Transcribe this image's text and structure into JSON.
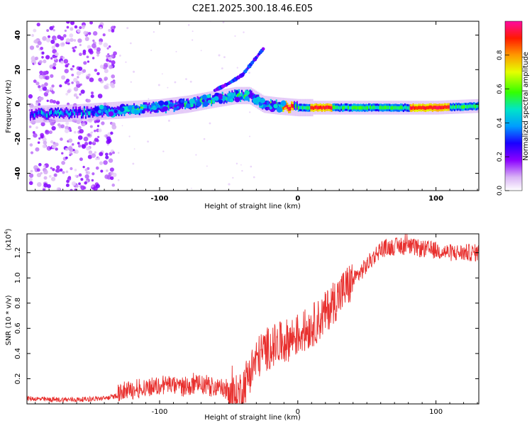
{
  "title": "C2E1.2025.300.18.46.E05",
  "chart_data": [
    {
      "type": "heatmap",
      "xlabel": "Height of straight line (km)",
      "ylabel": "Frequency (Hz)",
      "xlim": [
        -196,
        131
      ],
      "ylim": [
        -50,
        48
      ],
      "xticks": [
        -100,
        0,
        100
      ],
      "yticks": [
        -40,
        -20,
        0,
        20,
        40
      ],
      "colorbar": {
        "label": "Normalized spectral amplitude",
        "range": [
          0,
          1
        ],
        "ticks": [
          "0.0",
          "0.2",
          "0.4",
          "0.6",
          "0.8"
        ],
        "colors": [
          "#ffffff",
          "#cf9cf0",
          "#8b00ff",
          "#0000ff",
          "#00bfff",
          "#00ff90",
          "#7fff00",
          "#ffff00",
          "#ff8000",
          "#ff0000",
          "#ff1493"
        ]
      },
      "ridge": {
        "description_points_x": [
          -196,
          -160,
          -140,
          -120,
          -100,
          -80,
          -60,
          -45,
          -35,
          -25,
          -15,
          0,
          20,
          60,
          100,
          131
        ],
        "frequency_hz": [
          -6,
          -5,
          -4,
          -3,
          -2,
          0,
          3,
          5,
          5,
          0,
          -1,
          -2,
          -2,
          -2,
          -2,
          -1
        ]
      },
      "secondary_ridge": {
        "x": [
          -60,
          -50,
          -40,
          -35,
          -30,
          -25
        ],
        "frequency_hz": [
          8,
          12,
          17,
          22,
          27,
          32
        ]
      }
    },
    {
      "type": "line",
      "xlabel": "Height of straight line (km)",
      "ylabel": "SNR (10 * v/v)",
      "scale_note": "(x10",
      "scale_exponent": "4",
      "xlim": [
        -196,
        131
      ],
      "ylim": [
        0,
        1.35
      ],
      "xticks": [
        -100,
        0,
        100
      ],
      "yticks": [
        0.2,
        0.4,
        0.6,
        0.8,
        1.0,
        1.2
      ],
      "color": "#e8302e",
      "series": [
        {
          "name": "SNR",
          "x": [
            -196,
            -180,
            -160,
            -140,
            -130,
            -120,
            -110,
            -100,
            -95,
            -90,
            -80,
            -70,
            -60,
            -50,
            -45,
            -40,
            -35,
            -30,
            -25,
            -20,
            -15,
            -10,
            -5,
            0,
            5,
            10,
            15,
            20,
            25,
            30,
            35,
            40,
            45,
            50,
            55,
            60,
            70,
            80,
            90,
            100,
            110,
            120,
            131
          ],
          "y": [
            0.04,
            0.03,
            0.03,
            0.04,
            0.06,
            0.09,
            0.11,
            0.12,
            0.14,
            0.12,
            0.12,
            0.13,
            0.11,
            0.08,
            0.05,
            0.12,
            0.25,
            0.35,
            0.42,
            0.45,
            0.47,
            0.49,
            0.52,
            0.55,
            0.58,
            0.62,
            0.66,
            0.72,
            0.8,
            0.86,
            0.92,
            0.98,
            1.04,
            1.1,
            1.17,
            1.23,
            1.25,
            1.25,
            1.23,
            1.22,
            1.2,
            1.2,
            1.2
          ]
        }
      ]
    }
  ]
}
